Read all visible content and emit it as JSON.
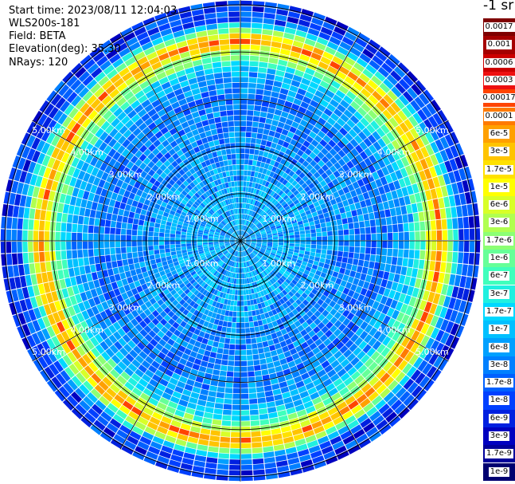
{
  "header": {
    "start_time": "Start time: 2023/08/11 12:04:03",
    "instrument": "WLS200s-181",
    "field": "Field: BETA",
    "elevation": "Elevation(deg): 35.30",
    "nrays": "NRays: 120"
  },
  "colorbar": {
    "unit": "-1 sr",
    "labels": [
      "0.0017",
      "0.001",
      "0.0006",
      "0.0003",
      "0.00017",
      "0.0001",
      "6e-5",
      "3e-5",
      "1.7e-5",
      "1e-5",
      "6e-6",
      "3e-6",
      "1.7e-6",
      "1e-6",
      "6e-7",
      "3e-7",
      "1.7e-7",
      "1e-7",
      "6e-8",
      "3e-8",
      "1.7e-8",
      "1e-8",
      "6e-9",
      "3e-9",
      "1.7e-9",
      "1e-9"
    ],
    "colors": [
      "#7f0000",
      "#a50000",
      "#cc0000",
      "#ee1010",
      "#ff4400",
      "#ff7a00",
      "#ffa000",
      "#ffc400",
      "#ffe100",
      "#ffff00",
      "#d8ff28",
      "#b0ff50",
      "#8cff74",
      "#66ff98",
      "#40ffbc",
      "#20f0e0",
      "#00d8ff",
      "#00c0ff",
      "#00a0ff",
      "#0080ff",
      "#0060ff",
      "#0040ff",
      "#0020e0",
      "#0000c0",
      "#00009a",
      "#000070"
    ]
  },
  "chart_data": {
    "type": "heatmap",
    "projection": "polar-ppi",
    "range_rings_km": [
      1,
      2,
      3,
      4,
      5
    ],
    "range_ring_labels": [
      "1.00km",
      "2.00km",
      "3.00km",
      "4.00km",
      "5.00km"
    ],
    "max_range_km": 5.1,
    "spokes_deg": [
      0,
      30,
      60,
      90,
      120,
      150,
      180,
      210,
      240,
      270,
      300,
      330
    ],
    "n_rays": 120,
    "color_scale": "log",
    "value_range": [
      1e-09,
      0.0017
    ],
    "profile": [
      {
        "range_km": 0.0,
        "level": 0.28
      },
      {
        "range_km": 1.0,
        "level": 0.3
      },
      {
        "range_km": 2.0,
        "level": 0.25
      },
      {
        "range_km": 3.0,
        "level": 0.22
      },
      {
        "range_km": 3.6,
        "level": 0.3
      },
      {
        "range_km": 4.0,
        "level": 0.55
      },
      {
        "range_km": 4.25,
        "level": 0.8
      },
      {
        "range_km": 4.45,
        "level": 0.5
      },
      {
        "range_km": 4.7,
        "level": 0.18
      },
      {
        "range_km": 5.1,
        "level": 0.14
      }
    ]
  }
}
